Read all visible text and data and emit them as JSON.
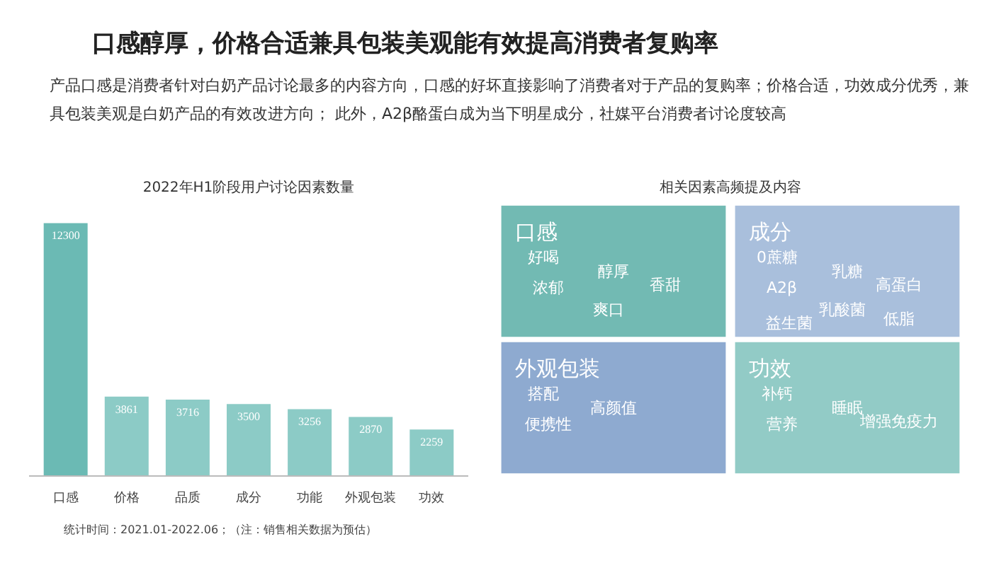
{
  "chart_data": [
    {
      "type": "bar",
      "title": "2022年H1阶段用户讨论因素数量",
      "categories": [
        "口感",
        "价格",
        "品质",
        "成分",
        "功能",
        "外观包装",
        "功效"
      ],
      "values": [
        12300,
        3861,
        3716,
        3500,
        3256,
        2870,
        2259
      ],
      "colors": [
        "#6bbab4",
        "#8ccbc6",
        "#8ccbc6",
        "#8ccbc6",
        "#8ccbc6",
        "#8ccbc6",
        "#8ccbc6"
      ],
      "data_labels": true,
      "annotations": [
        "口感醇厚，价格合适兼具包装美观能有效提高消费者复购率",
        "产品口感是消费者针对白奶产品讨论最多的内容方向，口感的好坏直接影响了消费者对于产品的复购率；价格合适，功效成分优秀，兼具包装美观是白奶产品的有效改进方向；  此外，A2β酪蛋白成为当下明星成分，社媒平台消费者讨论度较高",
        "统计时间：2021.01-2022.06；（注：销售相关数据为预估）"
      ]
    },
    {
      "type": "other",
      "title": "相关因素高频提及内容",
      "categories": [
        "口感",
        "成分",
        "外观包装",
        "功效"
      ],
      "colors": [
        "#72bab3",
        "#a9bfdc",
        "#8eaad0",
        "#92cbc6"
      ],
      "cell_labels": [
        [
          "好喝",
          "醇厚",
          "浓郁",
          "香甜",
          "爽口"
        ],
        [
          "0蔗糖",
          "乳糖",
          "A2β",
          "高蛋白",
          "乳酸菌",
          "益生菌",
          "低脂"
        ],
        [
          "搭配",
          "高颜值",
          "便携性"
        ],
        [
          "补钙",
          "睡眠",
          "营养",
          "增强免疫力"
        ]
      ]
    }
  ]
}
